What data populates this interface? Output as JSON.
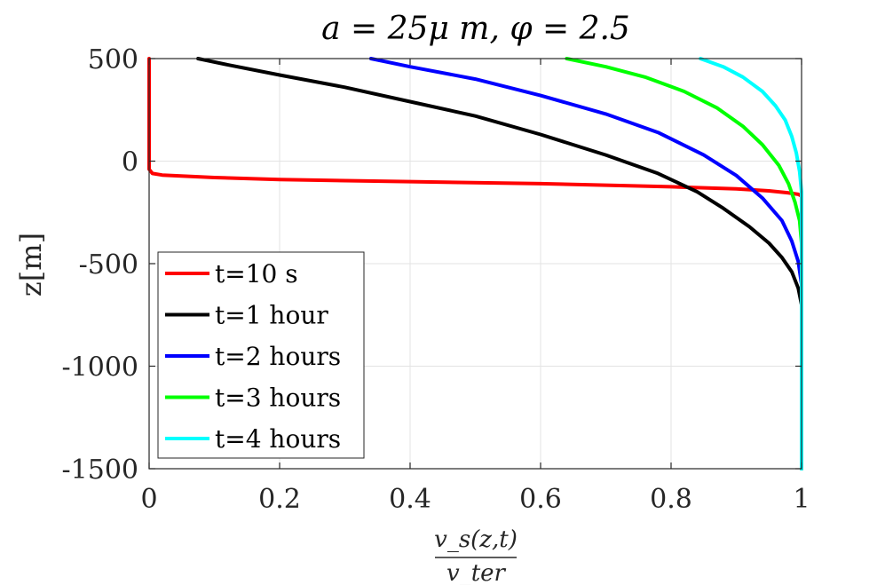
{
  "chart_data": {
    "type": "line",
    "title": "a = 25μ m, φ = 2.5",
    "xlabel_numerator": "v_s(z,t)",
    "xlabel_denominator": "v_ter",
    "ylabel": "z[m]",
    "xlim": [
      0,
      1
    ],
    "ylim": [
      -1500,
      500
    ],
    "xticks": [
      "0",
      "0.2",
      "0.4",
      "0.6",
      "0.8",
      "1"
    ],
    "yticks": [
      "500",
      "0",
      "-500",
      "-1000",
      "-1500"
    ],
    "grid": true,
    "legend_position": "bottom-left",
    "series": [
      {
        "name": "t=10 s",
        "color": "#ff0000",
        "points": [
          [
            0.0,
            500
          ],
          [
            0.0,
            200
          ],
          [
            0.0,
            0
          ],
          [
            0.0,
            -40
          ],
          [
            0.005,
            -60
          ],
          [
            0.02,
            -68
          ],
          [
            0.1,
            -80
          ],
          [
            0.2,
            -90
          ],
          [
            0.4,
            -100
          ],
          [
            0.6,
            -110
          ],
          [
            0.8,
            -125
          ],
          [
            0.9,
            -135
          ],
          [
            0.95,
            -145
          ],
          [
            0.98,
            -155
          ],
          [
            0.995,
            -162
          ],
          [
            1.0,
            -170
          ],
          [
            1.0,
            -500
          ],
          [
            1.0,
            -1000
          ],
          [
            1.0,
            -1500
          ]
        ]
      },
      {
        "name": "t=1 hour",
        "color": "#000000",
        "points": [
          [
            0.075,
            500
          ],
          [
            0.12,
            470
          ],
          [
            0.2,
            420
          ],
          [
            0.3,
            360
          ],
          [
            0.4,
            290
          ],
          [
            0.5,
            220
          ],
          [
            0.6,
            130
          ],
          [
            0.7,
            30
          ],
          [
            0.78,
            -60
          ],
          [
            0.84,
            -150
          ],
          [
            0.88,
            -230
          ],
          [
            0.92,
            -320
          ],
          [
            0.95,
            -400
          ],
          [
            0.97,
            -470
          ],
          [
            0.985,
            -540
          ],
          [
            0.995,
            -620
          ],
          [
            1.0,
            -700
          ],
          [
            1.0,
            -1000
          ],
          [
            1.0,
            -1500
          ]
        ]
      },
      {
        "name": "t=2 hours",
        "color": "#0000ff",
        "points": [
          [
            0.34,
            500
          ],
          [
            0.4,
            460
          ],
          [
            0.5,
            400
          ],
          [
            0.6,
            320
          ],
          [
            0.7,
            230
          ],
          [
            0.78,
            140
          ],
          [
            0.85,
            30
          ],
          [
            0.9,
            -70
          ],
          [
            0.94,
            -180
          ],
          [
            0.97,
            -290
          ],
          [
            0.985,
            -390
          ],
          [
            0.995,
            -490
          ],
          [
            1.0,
            -600
          ],
          [
            1.0,
            -1000
          ],
          [
            1.0,
            -1500
          ]
        ]
      },
      {
        "name": "t=3 hours",
        "color": "#00ff00",
        "points": [
          [
            0.64,
            500
          ],
          [
            0.7,
            460
          ],
          [
            0.76,
            410
          ],
          [
            0.82,
            340
          ],
          [
            0.87,
            260
          ],
          [
            0.91,
            170
          ],
          [
            0.94,
            80
          ],
          [
            0.965,
            -20
          ],
          [
            0.98,
            -110
          ],
          [
            0.99,
            -200
          ],
          [
            0.997,
            -290
          ],
          [
            1.0,
            -400
          ],
          [
            1.0,
            -1000
          ],
          [
            1.0,
            -1500
          ]
        ]
      },
      {
        "name": "t=4 hours",
        "color": "#00ffff",
        "points": [
          [
            0.845,
            500
          ],
          [
            0.88,
            460
          ],
          [
            0.91,
            410
          ],
          [
            0.94,
            340
          ],
          [
            0.96,
            270
          ],
          [
            0.975,
            200
          ],
          [
            0.985,
            120
          ],
          [
            0.992,
            40
          ],
          [
            0.997,
            -50
          ],
          [
            1.0,
            -150
          ],
          [
            1.0,
            -1000
          ],
          [
            1.0,
            -1500
          ]
        ]
      }
    ]
  }
}
